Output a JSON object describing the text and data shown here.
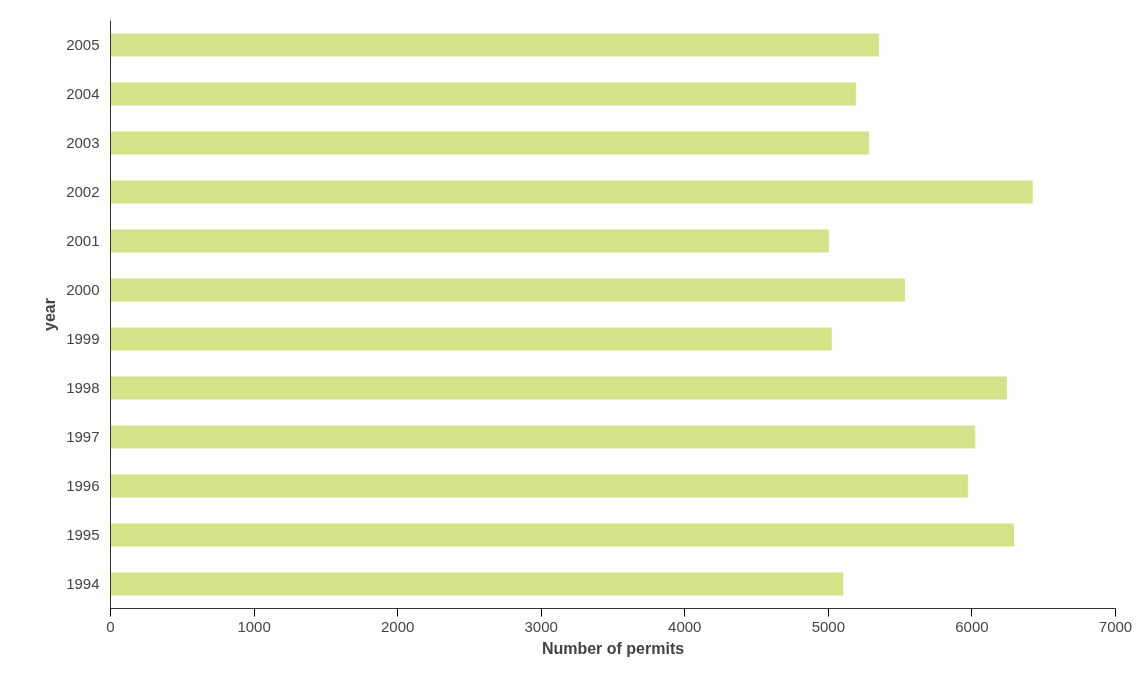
{
  "chart_data": {
    "type": "bar",
    "orientation": "horizontal",
    "xlabel": "Number of permits",
    "ylabel": "year",
    "categories": [
      "2005",
      "2004",
      "2003",
      "2002",
      "2001",
      "2000",
      "1999",
      "1998",
      "1997",
      "1996",
      "1995",
      "1994"
    ],
    "values": [
      5350,
      5190,
      5280,
      6420,
      5000,
      5530,
      5020,
      6240,
      6020,
      5970,
      6290,
      5100
    ],
    "color": "#d5e388",
    "xlim": [
      0,
      7000
    ],
    "xticks": [
      0,
      1000,
      2000,
      3000,
      4000,
      5000,
      6000,
      7000
    ],
    "grid": false
  }
}
